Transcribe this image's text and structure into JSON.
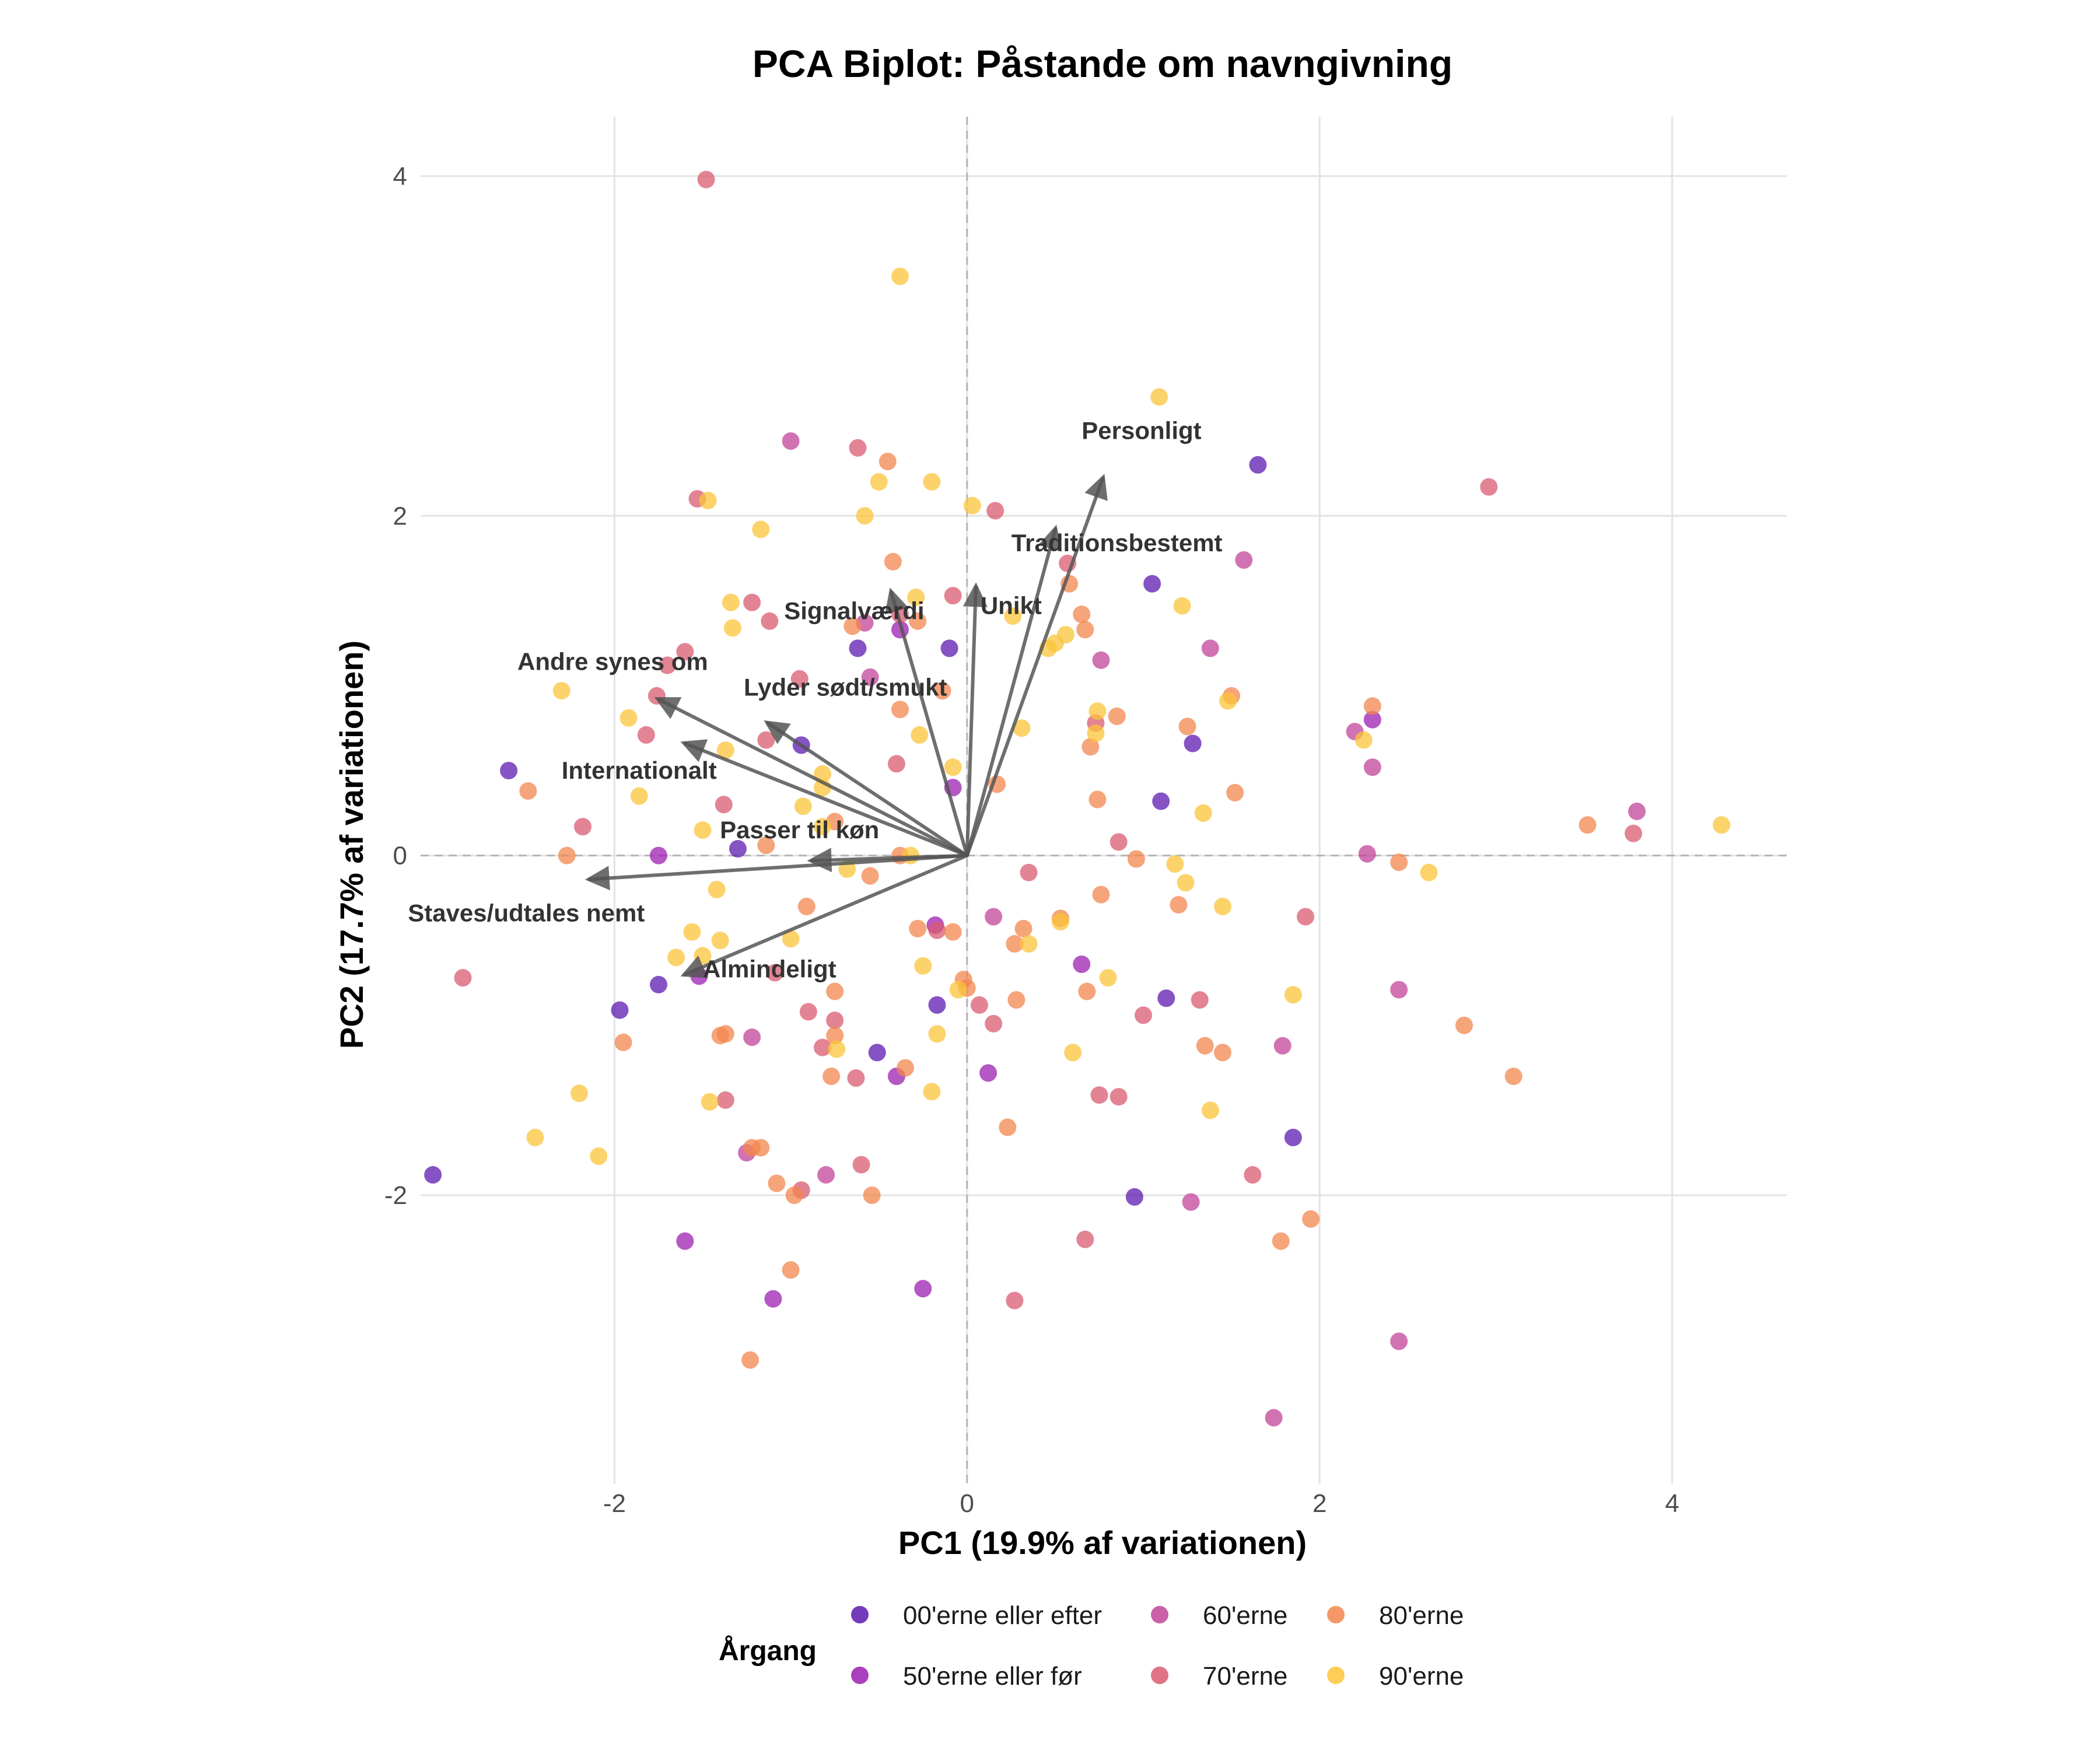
{
  "chart_data": {
    "type": "scatter",
    "title": "PCA Biplot: Påstande om navngivning",
    "xlabel": "PC1 (19.9% af variationen)",
    "ylabel": "PC2 (17.7% af variationen)",
    "xlim": [
      -3.1,
      4.65
    ],
    "ylim": [
      -3.7,
      4.35
    ],
    "x_ticks": [
      -2,
      0,
      2,
      4
    ],
    "y_ticks": [
      -2,
      0,
      2,
      4
    ],
    "x_tick_labels": [
      "-2",
      "0",
      "2",
      "4"
    ],
    "y_tick_labels": [
      "-2",
      "0",
      "2",
      "4"
    ],
    "grid": true,
    "legend": {
      "title": "Årgang",
      "placement": "bottom",
      "entries": [
        {
          "name": "00'erne eller efter",
          "color": "#5c1ab0"
        },
        {
          "name": "50'erne eller før",
          "color": "#9c1fb0"
        },
        {
          "name": "60'erne",
          "color": "#c2449a"
        },
        {
          "name": "70'erne",
          "color": "#da5b70"
        },
        {
          "name": "80'erne",
          "color": "#f3864e"
        },
        {
          "name": "90'erne",
          "color": "#fbc43a"
        }
      ]
    },
    "arrows": [
      {
        "label": "Personligt",
        "x": 0.77,
        "y": 2.22,
        "label_x": 0.99,
        "label_y": 2.5
      },
      {
        "label": "Traditionsbestemt",
        "x": 0.5,
        "y": 1.92,
        "label_x": 0.85,
        "label_y": 1.84
      },
      {
        "label": "Unikt",
        "x": 0.05,
        "y": 1.58,
        "label_x": 0.25,
        "label_y": 1.47
      },
      {
        "label": "Signalværdi",
        "x": -0.43,
        "y": 1.55,
        "label_x": -0.64,
        "label_y": 1.44
      },
      {
        "label": "Andre synes om",
        "x": -1.75,
        "y": 0.92,
        "label_x": -2.01,
        "label_y": 1.14
      },
      {
        "label": "Lyder sødt/smukt",
        "x": -1.13,
        "y": 0.78,
        "label_x": -0.69,
        "label_y": 0.99
      },
      {
        "label": "Internationalt",
        "x": -1.6,
        "y": 0.66,
        "label_x": -1.86,
        "label_y": 0.5
      },
      {
        "label": "Passer til køn",
        "x": -0.88,
        "y": -0.03,
        "label_x": -0.95,
        "label_y": 0.15
      },
      {
        "label": "Staves/udtales nemt",
        "x": -2.14,
        "y": -0.14,
        "label_x": -2.5,
        "label_y": -0.34
      },
      {
        "label": "Almindeligt",
        "x": -1.6,
        "y": -0.7,
        "label_x": -1.12,
        "label_y": -0.67
      }
    ],
    "series": [
      {
        "name": "00'erne eller efter",
        "x": [
          -2.6,
          1.65,
          -3.03,
          -1.3,
          -0.62,
          -0.1,
          -0.94,
          1.28,
          1.1,
          -1.75,
          -1.97,
          1.13,
          -0.17,
          0.95,
          -0.51,
          1.85,
          1.05
        ],
        "y": [
          0.5,
          2.3,
          -1.88,
          0.04,
          1.22,
          1.22,
          0.65,
          0.66,
          0.32,
          -0.76,
          -0.91,
          -0.84,
          -0.88,
          -2.01,
          -1.16,
          -1.66,
          1.6
        ]
      },
      {
        "name": "50'erne eller før",
        "x": [
          -1.75,
          -1.6,
          -1.1,
          -0.25,
          -0.4,
          0.12,
          -0.18,
          -0.08,
          2.3,
          0.65,
          -0.38,
          -1.52
        ],
        "y": [
          0.0,
          -2.27,
          -2.61,
          -2.55,
          -1.3,
          -1.28,
          -0.41,
          0.4,
          0.8,
          -0.64,
          1.33,
          -0.71
        ]
      },
      {
        "name": "60'erne",
        "x": [
          -1.0,
          1.57,
          0.76,
          2.2,
          2.3,
          2.27,
          2.45,
          1.79,
          1.27,
          1.74,
          0.15,
          -0.8,
          -1.25,
          -0.55,
          -0.58,
          1.38,
          2.45,
          3.8,
          -1.22
        ],
        "y": [
          2.44,
          1.74,
          1.15,
          0.73,
          0.52,
          0.01,
          -0.79,
          -1.12,
          -2.04,
          -3.31,
          -0.36,
          -1.88,
          -1.75,
          1.05,
          1.37,
          1.22,
          -2.86,
          0.26,
          -1.07
        ]
      },
      {
        "name": "70'erne",
        "x": [
          -1.48,
          -0.62,
          0.16,
          -1.53,
          0.57,
          -1.6,
          -1.12,
          -1.22,
          -1.7,
          -1.76,
          -0.08,
          -0.95,
          -0.38,
          0.73,
          -0.75,
          0.75,
          -1.14,
          -1.38,
          -1.09,
          -1.37,
          -0.63,
          -0.9,
          -0.94,
          0.15,
          -0.4,
          -0.17,
          0.35,
          0.86,
          1.0,
          1.32,
          1.62,
          2.96,
          3.78,
          -2.18,
          -2.86,
          -1.82,
          0.27,
          0.67,
          0.86,
          -0.6,
          -0.82,
          1.92,
          0.07
        ],
        "y": [
          3.98,
          2.4,
          2.03,
          2.1,
          1.72,
          1.2,
          1.38,
          1.49,
          1.12,
          0.94,
          1.53,
          1.04,
          1.42,
          0.78,
          -0.97,
          -1.41,
          0.68,
          0.3,
          -0.69,
          -1.44,
          -1.31,
          -0.92,
          -1.97,
          -0.99,
          0.54,
          -0.44,
          -0.1,
          0.08,
          -0.94,
          -0.85,
          -1.88,
          2.17,
          0.13,
          0.17,
          -0.72,
          0.71,
          -2.62,
          -2.26,
          -1.42,
          -1.82,
          -1.13,
          -0.36,
          -0.88
        ]
      },
      {
        "name": "80'erne",
        "x": [
          -0.45,
          -0.42,
          -0.65,
          -0.28,
          -0.38,
          0.58,
          0.65,
          0.67,
          0.7,
          0.85,
          -0.14,
          0.17,
          -0.38,
          1.25,
          1.5,
          1.52,
          2.3,
          2.45,
          3.52,
          -2.49,
          -2.27,
          -1.37,
          -1.22,
          -1.17,
          -1.08,
          -1.0,
          -0.98,
          -0.77,
          -0.75,
          -0.54,
          -0.75,
          -0.28,
          -0.02,
          0.23,
          0.28,
          0.32,
          0.74,
          0.68,
          0.76,
          1.2,
          1.35,
          1.45,
          1.78,
          1.95,
          2.82,
          3.1,
          0.0,
          0.53,
          -0.75,
          -1.95,
          -1.4,
          -0.91,
          -0.55,
          0.96,
          -0.08,
          0.27,
          -1.14,
          -0.35,
          -1.23
        ],
        "y": [
          2.32,
          1.73,
          1.35,
          1.38,
          0.86,
          1.6,
          1.42,
          1.33,
          0.64,
          0.82,
          0.97,
          0.42,
          0.0,
          0.76,
          0.94,
          0.37,
          0.88,
          -0.04,
          0.18,
          0.38,
          0.0,
          -1.05,
          -1.72,
          -1.72,
          -1.93,
          -2.44,
          -2.0,
          -1.3,
          -1.06,
          -2.0,
          0.2,
          -0.43,
          -0.73,
          -1.6,
          -0.85,
          -0.43,
          0.33,
          -0.8,
          -0.23,
          -0.29,
          -1.12,
          -1.16,
          -2.27,
          -2.14,
          -1.0,
          -1.3,
          -0.78,
          -0.37,
          -0.8,
          -1.1,
          -1.06,
          -0.3,
          -0.12,
          -0.02,
          -0.45,
          -0.52,
          0.06,
          -1.25,
          -2.97
        ]
      },
      {
        "name": "90'erne",
        "x": [
          -0.38,
          -0.5,
          1.09,
          -0.29,
          -0.2,
          0.03,
          -1.47,
          -1.17,
          -1.34,
          -1.33,
          -0.58,
          -0.27,
          0.26,
          0.46,
          0.56,
          0.5,
          1.22,
          1.48,
          0.74,
          0.31,
          -0.32,
          -0.08,
          0.73,
          1.34,
          2.25,
          2.62,
          4.28,
          1.45,
          1.24,
          1.18,
          0.53,
          0.35,
          0.6,
          0.8,
          1.85,
          1.38,
          -2.3,
          -1.92,
          -1.86,
          -1.56,
          -1.5,
          -1.42,
          -1.37,
          -0.82,
          -0.82,
          -0.93,
          -1.65,
          -1.4,
          -1.5,
          -1.0,
          -0.25,
          -0.05,
          -0.17,
          -0.82,
          -0.2,
          -2.2,
          -2.45,
          -2.09,
          -0.68,
          -0.74,
          -1.46
        ],
        "y": [
          3.41,
          2.2,
          2.7,
          1.52,
          2.2,
          2.06,
          2.09,
          1.92,
          1.49,
          1.34,
          2.0,
          0.71,
          1.41,
          1.22,
          1.3,
          1.25,
          1.47,
          0.91,
          0.85,
          0.75,
          0.0,
          0.52,
          0.72,
          0.25,
          0.68,
          -0.1,
          0.18,
          -0.3,
          -0.16,
          -0.05,
          -0.39,
          -0.52,
          -1.16,
          -0.72,
          -0.82,
          -1.5,
          0.97,
          0.81,
          0.35,
          -0.45,
          -0.59,
          -0.2,
          0.62,
          0.48,
          0.4,
          0.29,
          -0.6,
          -0.5,
          0.15,
          -0.49,
          -0.65,
          -0.79,
          -1.05,
          0.17,
          -1.39,
          -1.4,
          -1.66,
          -1.77,
          -0.08,
          -1.14,
          -1.45
        ]
      }
    ]
  }
}
